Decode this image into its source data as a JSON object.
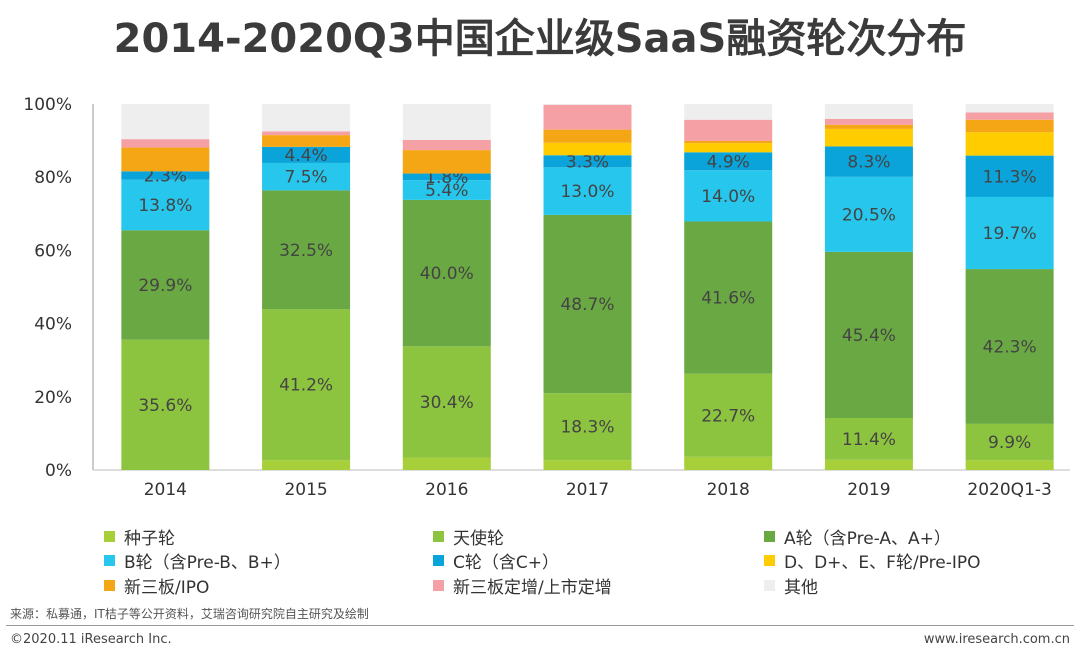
{
  "title": "2014-2020Q3中国企业级SaaS融资轮次分布",
  "source": "来源：私募通，IT桔子等公开资料，艾瑞咨询研究院自主研究及绘制",
  "copyright": "©2020.11 iResearch Inc.",
  "website": "www.iresearch.com.cn",
  "colors": {
    "seed": "#a6cf3a",
    "angel": "#8dc43f",
    "roundA": "#6aa843",
    "roundB": "#27c6ec",
    "roundC": "#0aa4da",
    "roundDF": "#ffcc00",
    "neeqIpo": "#f5a614",
    "neeqPlacement": "#f4a0a4",
    "other": "#eeeeee"
  },
  "chart_data": {
    "type": "bar",
    "stacked": true,
    "categories": [
      "2014",
      "2015",
      "2016",
      "2017",
      "2018",
      "2019",
      "2020Q1-3"
    ],
    "y_ticks": [
      "0%",
      "20%",
      "40%",
      "60%",
      "80%",
      "100%"
    ],
    "ylim": [
      0,
      100
    ],
    "legend_position": "bottom",
    "series": [
      {
        "name": "种子轮",
        "key": "seed",
        "values": [
          0.0,
          2.7,
          3.4,
          2.7,
          3.6,
          2.8,
          2.7
        ],
        "labels": [
          "",
          "",
          "",
          "",
          "",
          "",
          ""
        ]
      },
      {
        "name": "天使轮",
        "key": "angel",
        "values": [
          35.6,
          41.2,
          30.4,
          18.3,
          22.7,
          11.4,
          9.9
        ],
        "labels": [
          "35.6%",
          "41.2%",
          "30.4%",
          "18.3%",
          "22.7%",
          "11.4%",
          "9.9%"
        ]
      },
      {
        "name": "A轮（含Pre-A、A+）",
        "key": "roundA",
        "values": [
          29.9,
          32.5,
          40.0,
          48.7,
          41.6,
          45.4,
          42.3
        ],
        "labels": [
          "29.9%",
          "32.5%",
          "40.0%",
          "48.7%",
          "41.6%",
          "45.4%",
          "42.3%"
        ]
      },
      {
        "name": "B轮（含Pre-B、B+）",
        "key": "roundB",
        "values": [
          13.8,
          7.5,
          5.4,
          13.0,
          14.0,
          20.5,
          19.7
        ],
        "labels": [
          "13.8%",
          "7.5%",
          "5.4%",
          "13.0%",
          "14.0%",
          "20.5%",
          "19.7%"
        ]
      },
      {
        "name": "C轮（含C+）",
        "key": "roundC",
        "values": [
          2.3,
          4.4,
          1.8,
          3.3,
          4.9,
          8.3,
          11.3
        ],
        "labels": [
          "2.3%",
          "4.4%",
          "1.8%",
          "3.3%",
          "4.9%",
          "8.3%",
          "11.3%"
        ]
      },
      {
        "name": "D、D+、E、F轮/Pre-IPO",
        "key": "roundDF",
        "values": [
          0.0,
          0.0,
          0.0,
          3.4,
          2.5,
          4.8,
          6.4
        ],
        "labels": [
          "",
          "",
          "",
          "",
          "",
          "",
          ""
        ]
      },
      {
        "name": "新三板/IPO",
        "key": "neeqIpo",
        "values": [
          6.5,
          3.2,
          6.4,
          3.6,
          0.6,
          1.1,
          3.4
        ],
        "labels": [
          "",
          "",
          "",
          "",
          "",
          "",
          ""
        ]
      },
      {
        "name": "新三板定增/上市定增",
        "key": "neeqPlacement",
        "values": [
          2.3,
          1.0,
          2.8,
          6.8,
          5.8,
          1.6,
          2.0
        ],
        "labels": [
          "",
          "",
          "",
          "",
          "",
          "",
          ""
        ]
      },
      {
        "name": "其他",
        "key": "other",
        "values": [
          9.6,
          7.5,
          9.8,
          0.2,
          4.3,
          4.1,
          2.3
        ],
        "labels": [
          "",
          "",
          "",
          "",
          "",
          "",
          ""
        ]
      }
    ]
  }
}
